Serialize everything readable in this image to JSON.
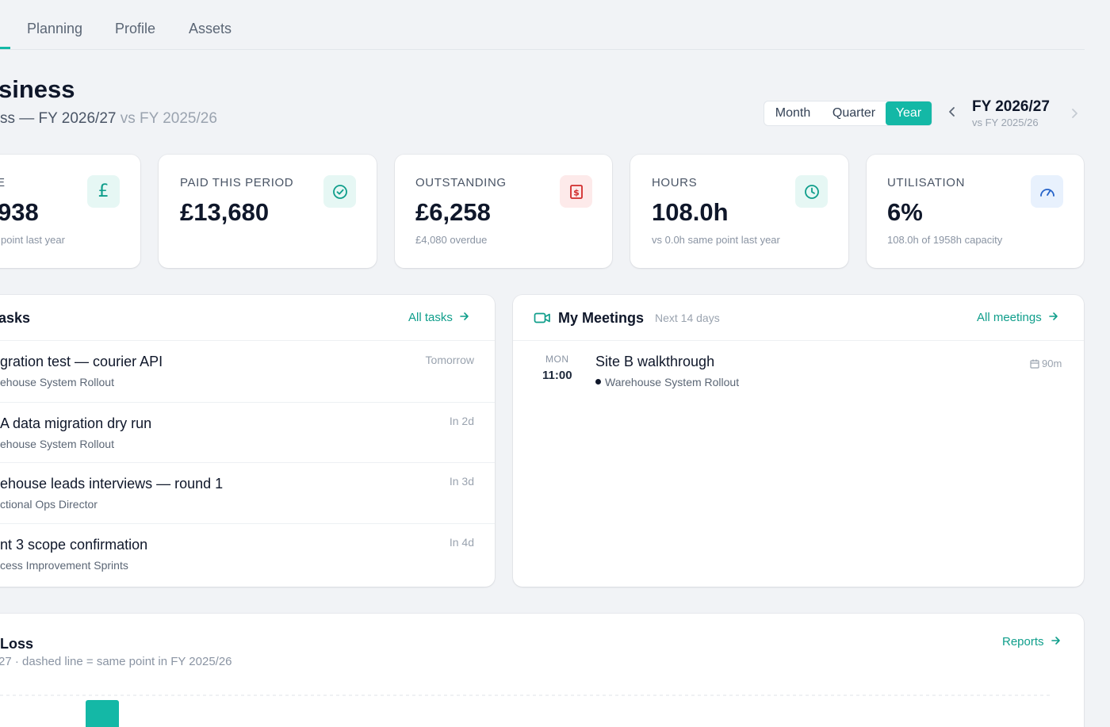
{
  "tabs": [
    {
      "label": "Planning"
    },
    {
      "label": "Profile"
    },
    {
      "label": "Assets"
    }
  ],
  "header": {
    "title": "siness",
    "subtitle_main": "ss — FY 2026/27",
    "subtitle_vs": "vs FY 2025/26"
  },
  "period_toggle": {
    "options": [
      "Month",
      "Quarter",
      "Year"
    ],
    "selected": "Year"
  },
  "fiscal": {
    "current": "FY 2026/27",
    "compare": "vs FY 2025/26"
  },
  "kpis": [
    {
      "label": "E",
      "value": "938",
      "note": "point last year",
      "icon": "pound-icon"
    },
    {
      "label": "PAID THIS PERIOD",
      "value": "£13,680",
      "note": "",
      "icon": "check-circle-icon"
    },
    {
      "label": "OUTSTANDING",
      "value": "£6,258",
      "note": "£4,080 overdue",
      "icon": "invoice-icon"
    },
    {
      "label": "HOURS",
      "value": "108.0h",
      "note": "vs 0.0h same point last year",
      "icon": "clock-icon"
    },
    {
      "label": "UTILISATION",
      "value": "6%",
      "note": "108.0h of 1958h capacity",
      "icon": "gauge-icon"
    }
  ],
  "tasks": {
    "title": "asks",
    "link": "All tasks",
    "items": [
      {
        "title": "gration test — courier API",
        "project": "ehouse System Rollout",
        "due": "Tomorrow"
      },
      {
        "title": "A data migration dry run",
        "project": "ehouse System Rollout",
        "due": "In 2d"
      },
      {
        "title": "ehouse leads interviews — round 1",
        "project": "ctional Ops Director",
        "due": "In 3d"
      },
      {
        "title": "nt 3 scope confirmation",
        "project": "cess Improvement Sprints",
        "due": "In 4d"
      }
    ]
  },
  "meetings": {
    "title": "My Meetings",
    "range": "Next 14 days",
    "link": "All meetings",
    "items": [
      {
        "day": "MON",
        "time": "11:00",
        "title": "Site B walkthrough",
        "project": "Warehouse System Rollout",
        "duration": "90m"
      }
    ]
  },
  "profit_loss": {
    "title": "Loss",
    "subtitle": "27 · dashed line = same point in FY 2025/26",
    "link": "Reports"
  },
  "colors": {
    "accent": "#14b8a6",
    "link": "#0f9e8b",
    "danger": "#d12c2c",
    "info": "#2563c9"
  }
}
